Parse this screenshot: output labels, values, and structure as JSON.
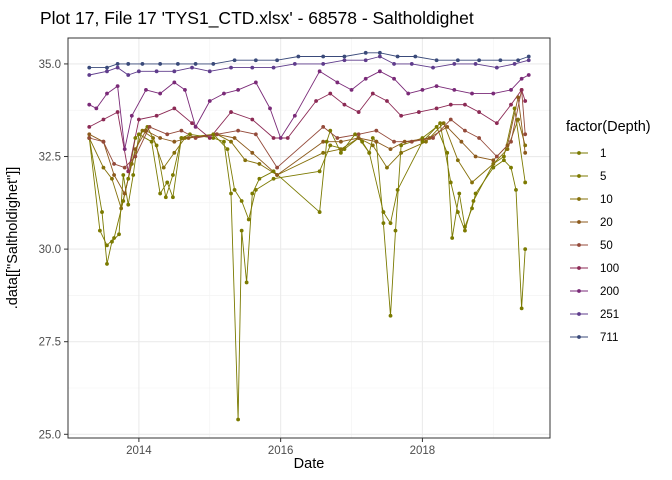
{
  "chart_data": {
    "type": "line",
    "title": "Plot 17, File 17 'TYS1_CTD.xlsx' - 68578  -  Saltholdighet",
    "xlabel": "Date",
    "ylabel": ".data[[\"Saltholdighet\"]]",
    "xlim": [
      2013.0,
      2019.8
    ],
    "ylim": [
      24.9,
      35.7
    ],
    "x_ticks": [
      {
        "value": 2014,
        "label": "2014"
      },
      {
        "value": 2016,
        "label": "2016"
      },
      {
        "value": 2018,
        "label": "2018"
      }
    ],
    "y_ticks": [
      {
        "value": 25.0,
        "label": "25.0"
      },
      {
        "value": 27.5,
        "label": "27.5"
      },
      {
        "value": 30.0,
        "label": "30.0"
      },
      {
        "value": 32.5,
        "label": "32.5"
      },
      {
        "value": 35.0,
        "label": "35.0"
      }
    ],
    "grid": true,
    "legend_title": "factor(Depth)",
    "legend_position": "right",
    "series": [
      {
        "name": "1",
        "color": "#7a7a00",
        "x": [
          2013.3,
          2013.48,
          2013.55,
          2013.62,
          2013.72,
          2013.78,
          2013.85,
          2013.92,
          2014.0,
          2014.18,
          2014.3,
          2014.4,
          2014.48,
          2014.6,
          2014.72,
          2015.05,
          2015.2,
          2015.3,
          2015.4,
          2015.45,
          2015.52,
          2015.6,
          2015.7,
          2015.9,
          2016.55,
          2016.65,
          2016.7,
          2016.85,
          2017.05,
          2017.15,
          2017.25,
          2017.3,
          2017.35,
          2017.45,
          2017.55,
          2017.62,
          2017.7,
          2018.0,
          2018.2,
          2018.35,
          2018.42,
          2018.52,
          2018.6,
          2018.7,
          2018.75,
          2019.0,
          2019.15,
          2019.25,
          2019.32,
          2019.4,
          2019.45
        ],
        "y": [
          33.0,
          31.0,
          29.6,
          30.2,
          30.4,
          32.0,
          31.2,
          32.0,
          33.1,
          32.9,
          31.5,
          31.8,
          31.4,
          33.0,
          33.1,
          33.0,
          32.9,
          31.5,
          25.4,
          30.5,
          29.1,
          31.5,
          31.9,
          32.1,
          31.0,
          32.9,
          33.2,
          32.6,
          33.1,
          32.9,
          32.6,
          33.0,
          32.9,
          30.7,
          28.2,
          30.5,
          32.8,
          33.0,
          33.3,
          32.6,
          30.3,
          31.5,
          30.6,
          31.1,
          31.5,
          32.2,
          32.4,
          32.2,
          31.6,
          28.4,
          30.0
        ]
      },
      {
        "name": "5",
        "color": "#7d7a00",
        "x": [
          2013.3,
          2013.45,
          2013.55,
          2013.65,
          2013.78,
          2013.85,
          2013.95,
          2014.12,
          2014.25,
          2014.38,
          2014.48,
          2014.6,
          2015.05,
          2015.25,
          2015.35,
          2015.45,
          2015.55,
          2015.65,
          2015.9,
          2016.55,
          2016.7,
          2016.9,
          2017.1,
          2017.25,
          2017.45,
          2017.55,
          2017.65,
          2018.0,
          2018.25,
          2018.4,
          2018.5,
          2018.6,
          2018.72,
          2019.0,
          2019.15,
          2019.3,
          2019.45
        ],
        "y": [
          33.0,
          30.5,
          30.1,
          30.3,
          31.3,
          31.9,
          33.0,
          33.3,
          32.8,
          31.4,
          32.0,
          33.0,
          33.1,
          32.7,
          31.6,
          31.3,
          30.8,
          31.6,
          31.9,
          32.1,
          32.8,
          32.7,
          33.0,
          32.6,
          31.0,
          30.7,
          31.6,
          32.9,
          33.4,
          31.8,
          31.0,
          30.5,
          31.3,
          32.3,
          32.5,
          33.8,
          31.8
        ]
      },
      {
        "name": "10",
        "color": "#85700a",
        "x": [
          2013.3,
          2013.5,
          2013.62,
          2013.75,
          2013.9,
          2014.05,
          2014.2,
          2014.35,
          2014.5,
          2014.65,
          2015.1,
          2015.3,
          2015.5,
          2015.7,
          2015.95,
          2016.6,
          2016.85,
          2017.1,
          2017.3,
          2017.5,
          2017.7,
          2018.05,
          2018.3,
          2018.5,
          2018.7,
          2019.0,
          2019.2,
          2019.35,
          2019.45
        ],
        "y": [
          33.0,
          32.2,
          31.9,
          31.1,
          32.3,
          33.2,
          33.0,
          32.2,
          32.6,
          33.0,
          33.1,
          32.9,
          32.4,
          32.3,
          32.0,
          32.6,
          32.7,
          33.0,
          32.8,
          32.2,
          32.6,
          32.9,
          33.4,
          32.4,
          31.8,
          32.3,
          32.7,
          33.5,
          32.8
        ]
      },
      {
        "name": "20",
        "color": "#8c5a1c",
        "x": [
          2013.3,
          2013.5,
          2013.65,
          2013.8,
          2013.95,
          2014.1,
          2014.3,
          2014.5,
          2014.7,
          2015.1,
          2015.35,
          2015.6,
          2015.95,
          2016.6,
          2016.85,
          2017.1,
          2017.35,
          2017.55,
          2017.75,
          2018.1,
          2018.35,
          2018.55,
          2018.75,
          2019.0,
          2019.2,
          2019.35,
          2019.45
        ],
        "y": [
          33.1,
          32.9,
          32.0,
          31.5,
          32.7,
          33.2,
          33.0,
          32.9,
          33.0,
          33.1,
          33.0,
          32.6,
          32.0,
          32.9,
          32.9,
          33.0,
          32.9,
          32.7,
          32.9,
          33.0,
          33.3,
          32.9,
          32.5,
          32.4,
          32.8,
          34.1,
          32.6
        ]
      },
      {
        "name": "50",
        "color": "#944a3a",
        "x": [
          2013.3,
          2013.5,
          2013.65,
          2013.8,
          2013.95,
          2014.15,
          2014.4,
          2014.6,
          2014.8,
          2015.1,
          2015.4,
          2015.65,
          2015.95,
          2016.6,
          2016.8,
          2017.1,
          2017.35,
          2017.6,
          2017.85,
          2018.15,
          2018.4,
          2018.6,
          2018.8,
          2019.05,
          2019.25,
          2019.4,
          2019.45
        ],
        "y": [
          33.0,
          32.9,
          32.3,
          32.2,
          32.5,
          33.3,
          33.1,
          33.2,
          33.0,
          33.1,
          33.2,
          33.1,
          32.2,
          33.3,
          33.0,
          33.1,
          33.2,
          32.9,
          32.9,
          33.0,
          33.5,
          33.2,
          33.0,
          32.5,
          32.9,
          34.3,
          33.1
        ]
      },
      {
        "name": "100",
        "color": "#8c2a55",
        "x": [
          2013.3,
          2013.5,
          2013.7,
          2013.85,
          2014.0,
          2014.25,
          2014.5,
          2014.75,
          2015.0,
          2015.3,
          2015.6,
          2015.9,
          2016.1,
          2016.5,
          2016.7,
          2016.9,
          2017.1,
          2017.3,
          2017.5,
          2017.7,
          2017.95,
          2018.2,
          2018.4,
          2018.6,
          2018.8,
          2019.05,
          2019.25,
          2019.4,
          2019.45
        ],
        "y": [
          33.3,
          33.5,
          33.7,
          32.1,
          33.5,
          33.6,
          33.8,
          33.4,
          33.0,
          33.7,
          33.5,
          33.0,
          33.0,
          34.0,
          34.2,
          33.9,
          33.7,
          34.2,
          34.0,
          33.6,
          33.7,
          33.8,
          33.9,
          33.9,
          33.7,
          33.4,
          33.9,
          34.3,
          34.0
        ]
      },
      {
        "name": "200",
        "color": "#7a2a78",
        "x": [
          2013.3,
          2013.4,
          2013.55,
          2013.7,
          2013.8,
          2013.9,
          2014.1,
          2014.3,
          2014.5,
          2014.65,
          2014.8,
          2015.0,
          2015.2,
          2015.4,
          2015.65,
          2015.85,
          2016.0,
          2016.2,
          2016.55,
          2016.8,
          2017.0,
          2017.2,
          2017.4,
          2017.6,
          2017.8,
          2018.0,
          2018.2,
          2018.45,
          2018.7,
          2019.0,
          2019.25,
          2019.4,
          2019.5
        ],
        "y": [
          33.9,
          33.8,
          34.2,
          34.4,
          32.7,
          33.6,
          34.3,
          34.2,
          34.5,
          34.3,
          33.3,
          34.0,
          34.2,
          34.3,
          34.5,
          33.8,
          33.0,
          33.6,
          34.8,
          34.5,
          34.3,
          34.6,
          34.8,
          34.6,
          34.2,
          34.3,
          34.4,
          34.3,
          34.2,
          34.2,
          34.3,
          34.6,
          34.7
        ]
      },
      {
        "name": "251",
        "color": "#5f3c8c",
        "x": [
          2013.3,
          2013.55,
          2013.7,
          2013.85,
          2014.0,
          2014.25,
          2014.5,
          2014.75,
          2015.0,
          2015.3,
          2015.6,
          2015.9,
          2016.2,
          2016.6,
          2016.9,
          2017.2,
          2017.4,
          2017.6,
          2017.85,
          2018.15,
          2018.45,
          2018.75,
          2019.05,
          2019.3,
          2019.5
        ],
        "y": [
          34.7,
          34.8,
          34.9,
          34.7,
          34.8,
          34.8,
          34.8,
          34.9,
          34.8,
          34.9,
          34.9,
          34.9,
          35.0,
          35.0,
          35.1,
          35.1,
          35.2,
          35.0,
          35.0,
          34.9,
          35.0,
          35.0,
          34.9,
          35.0,
          35.1
        ]
      },
      {
        "name": "711",
        "color": "#3a4a7a",
        "x": [
          2013.3,
          2013.55,
          2013.7,
          2013.85,
          2014.05,
          2014.3,
          2014.55,
          2014.8,
          2015.05,
          2015.35,
          2015.65,
          2015.95,
          2016.25,
          2016.6,
          2016.9,
          2017.2,
          2017.4,
          2017.65,
          2017.9,
          2018.2,
          2018.5,
          2018.8,
          2019.1,
          2019.35,
          2019.5
        ],
        "y": [
          34.9,
          34.9,
          35.0,
          35.0,
          35.0,
          35.0,
          35.0,
          35.0,
          35.0,
          35.1,
          35.1,
          35.1,
          35.2,
          35.2,
          35.2,
          35.3,
          35.3,
          35.2,
          35.2,
          35.1,
          35.1,
          35.1,
          35.1,
          35.1,
          35.2
        ]
      }
    ]
  }
}
